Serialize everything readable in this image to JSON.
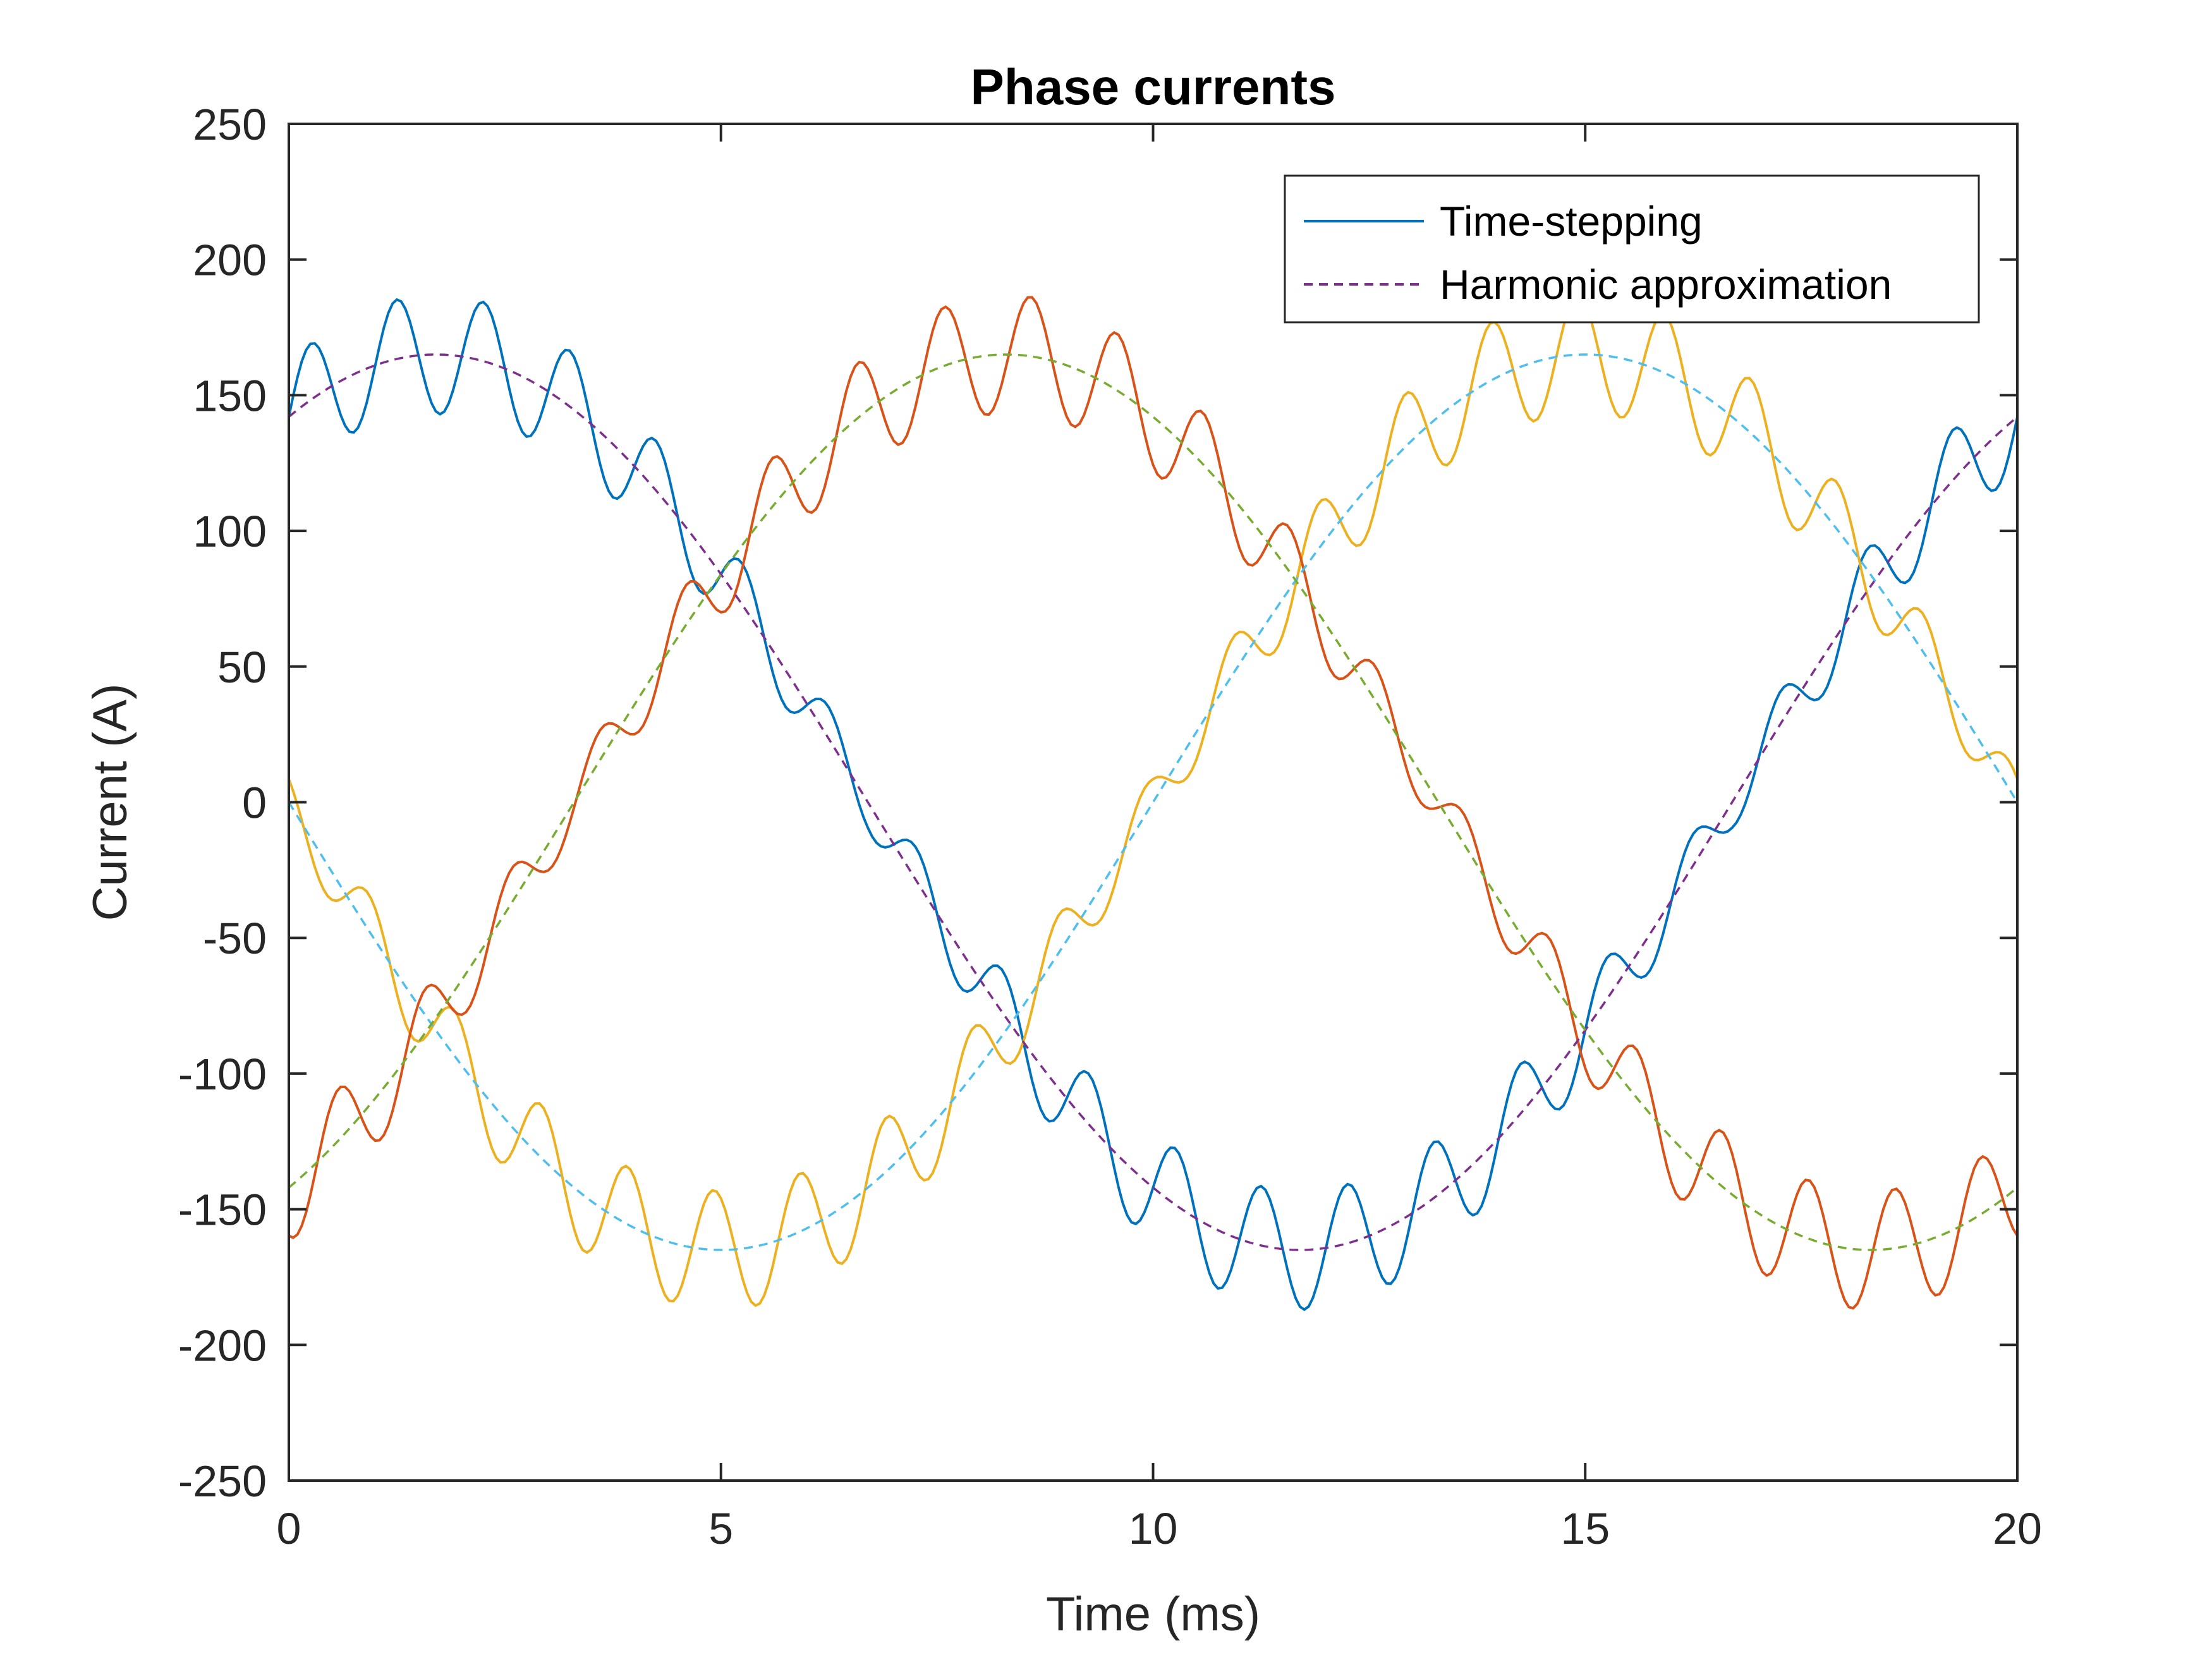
{
  "chart_data": {
    "type": "line",
    "title": "Phase currents",
    "xlabel": "Time (ms)",
    "ylabel": "Current (A)",
    "xlim": [
      0,
      20
    ],
    "ylim": [
      -250,
      250
    ],
    "xticks": [
      0,
      5,
      10,
      15,
      20
    ],
    "yticks": [
      -250,
      -200,
      -150,
      -100,
      -50,
      0,
      50,
      100,
      150,
      200,
      250
    ],
    "grid": false,
    "legend_position": "top-right",
    "legend": [
      {
        "label": "Time-stepping",
        "color": "#0072BD",
        "style": "solid"
      },
      {
        "label": "Harmonic approximation",
        "color": "#7E2F8E",
        "style": "dashed"
      }
    ],
    "harmonic": {
      "amplitude_A": 165,
      "period_ms": 20,
      "phase_peak_times_ms": [
        1.7,
        15.0,
        8.3
      ],
      "colors": [
        "#7E2F8E",
        "#4DBEEE",
        "#77AC30"
      ]
    },
    "ripple": {
      "amplitude_A": 22,
      "period_ms": 1.0
    },
    "time_stepping_colors": [
      "#0072BD",
      "#EDB120",
      "#D95319"
    ]
  }
}
